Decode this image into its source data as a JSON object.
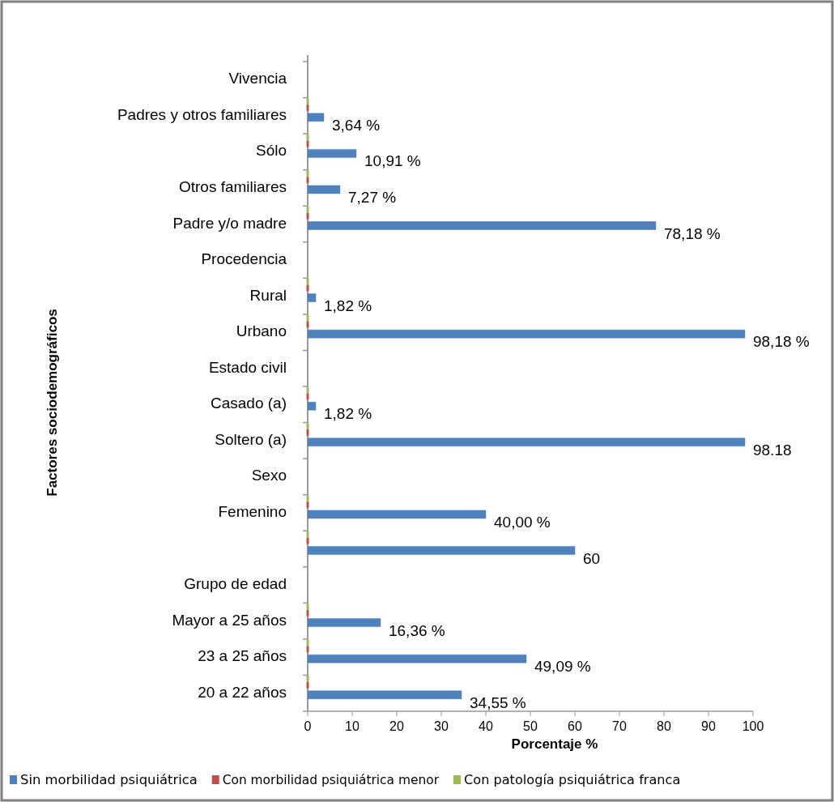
{
  "chart_data": {
    "type": "bar",
    "orientation": "horizontal",
    "xlabel": "Porcentaje %",
    "ylabel": "Factores sociodemográficos",
    "categories": [
      "Vivencia",
      "Padres y otros familiares",
      "Sólo",
      "Otros familiares",
      "Padre y/o madre",
      "Procedencia",
      "Rural",
      "Urbano",
      "Estado civil",
      "Casado (a)",
      "Soltero (a)",
      "Sexo",
      "Femenino",
      null,
      "Grupo de edad",
      "Mayor a 25 años",
      "23 a 25 años",
      "20 a 22 años"
    ],
    "series": [
      {
        "name": "Sin morbilidad psiquiátrica",
        "color": "#4f81bd",
        "values": [
          null,
          3.64,
          10.91,
          7.27,
          78.18,
          null,
          1.82,
          98.18,
          null,
          1.82,
          98.18,
          null,
          40,
          60,
          null,
          16.36,
          49.09,
          34.55
        ],
        "value_labels": [
          null,
          "3,64 %",
          "10,91 %",
          "7,27 %",
          "78,18 %",
          null,
          "1,82 %",
          "98,18 %",
          null,
          "1,82 %",
          "98.18",
          null,
          "40,00 %",
          "60",
          null,
          "16,36 %",
          "49,09 %",
          "34,55 %"
        ]
      },
      {
        "name": "Con morbilidad psiquiátrica menor",
        "color": "#c0504d",
        "values": [
          null,
          0,
          0,
          0,
          0,
          null,
          0,
          0,
          null,
          0,
          0,
          null,
          0,
          0,
          null,
          0,
          0,
          0
        ]
      },
      {
        "name": "Con patología psiquiátrica franca",
        "color": "#9bbb59",
        "values": [
          null,
          0,
          0,
          0,
          0,
          null,
          0,
          0,
          null,
          0,
          0,
          null,
          0,
          0,
          null,
          0,
          0,
          0
        ]
      }
    ],
    "xlim": [
      0,
      100
    ],
    "xticks": [
      0,
      10,
      20,
      30,
      40,
      50,
      60,
      70,
      80,
      90,
      100
    ],
    "grid": false,
    "legend": "bottom"
  }
}
